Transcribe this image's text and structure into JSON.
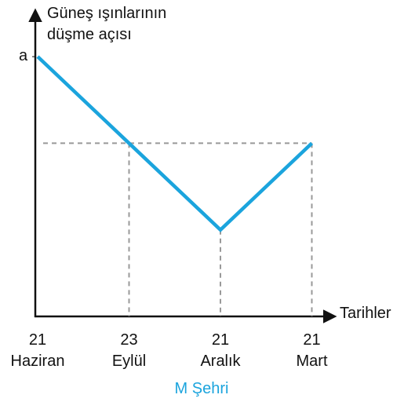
{
  "chart_data": {
    "type": "line",
    "ylabel": "Güneş ışınlarının\ndüşme açısı",
    "xlabel": "Tarihler",
    "subtitle": "M Şehri",
    "categories": [
      "21\nHaziran",
      "23\nEylül",
      "21\nAralık",
      "21\nMart"
    ],
    "values": [
      3,
      2,
      1,
      2
    ],
    "color": "#1ba4dd",
    "guide_color": "#999999",
    "ylim": [
      0,
      3.5
    ],
    "yticks": [
      {
        "value": 3,
        "label": "a"
      }
    ],
    "grid": false
  }
}
